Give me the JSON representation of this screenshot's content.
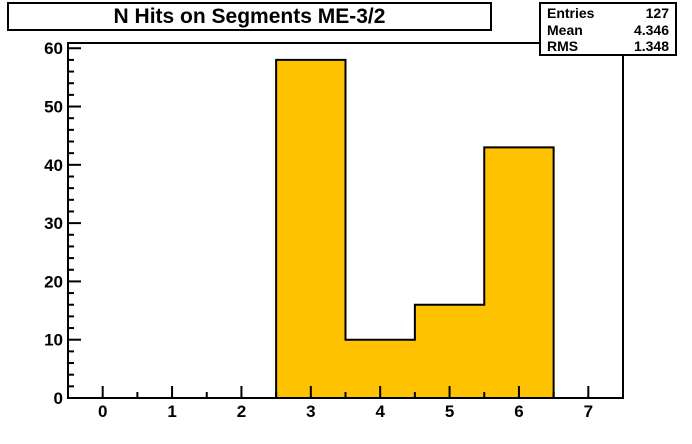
{
  "title": "N Hits on Segments ME-3/2",
  "stats": {
    "rows": [
      {
        "label": "Entries",
        "value": "127"
      },
      {
        "label": "Mean",
        "value": "4.346"
      },
      {
        "label": "RMS",
        "value": "1.348"
      }
    ]
  },
  "colors": {
    "bar_fill": "#ffc200",
    "line": "#000000",
    "background": "#ffffff",
    "box_background": "#ffffff"
  },
  "chart_data": {
    "type": "bar",
    "title": "N Hits on Segments ME-3/2",
    "bin_edges": [
      2.5,
      3.5,
      4.5,
      5.5,
      6.5
    ],
    "values": [
      58,
      10,
      16,
      43
    ],
    "xlim": [
      -0.5,
      7.5
    ],
    "ylim": [
      0,
      60.9
    ],
    "x_major_ticks": [
      0,
      1,
      2,
      3,
      4,
      5,
      6,
      7
    ],
    "x_tick_labels": [
      "0",
      "1",
      "2",
      "3",
      "4",
      "5",
      "6",
      "7"
    ],
    "x_minor_step": 0.5,
    "y_major_step": 10,
    "y_tick_labels": [
      "0",
      "10",
      "20",
      "30",
      "40",
      "50",
      "60"
    ],
    "y_minor_step": 2,
    "xlabel": "",
    "ylabel": "",
    "grid": false,
    "legend_position": "none",
    "stats": {
      "entries": 127,
      "mean": 4.346,
      "rms": 1.348
    }
  }
}
